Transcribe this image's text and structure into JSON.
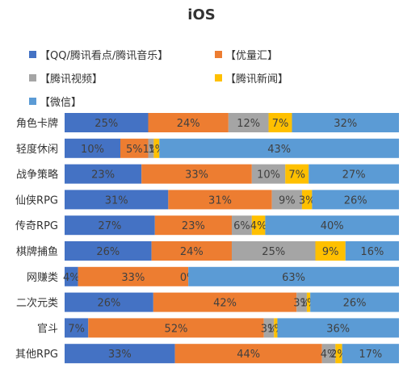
{
  "chart_data": {
    "type": "bar",
    "orientation": "horizontal",
    "stacked": true,
    "normalized": true,
    "title": "iOS",
    "categories": [
      "角色卡牌",
      "轻度休闲",
      "战争策略",
      "仙侠RPG",
      "传奇RPG",
      "棋牌捕鱼",
      "网赚类",
      "二次元类",
      "官斗",
      "其他RPG"
    ],
    "series": [
      {
        "name": "【QQ/腾讯看点/腾讯音乐】",
        "color": "#4472C4",
        "values": [
          25,
          10,
          23,
          31,
          27,
          26,
          4,
          26,
          7,
          33
        ],
        "labels": [
          "25%",
          "10%",
          "23%",
          "31%",
          "27%",
          "26%",
          "4%",
          "26%",
          "7%",
          "33%"
        ]
      },
      {
        "name": "【优量汇】",
        "color": "#ED7D31",
        "values": [
          24,
          5,
          33,
          31,
          23,
          24,
          33,
          42,
          52,
          44
        ],
        "labels": [
          "24%",
          "5%",
          "33%",
          "31%",
          "23%",
          "24%",
          "33%",
          "42%",
          "52%",
          "44%"
        ]
      },
      {
        "name": "【腾讯视频】",
        "color": "#A5A5A5",
        "values": [
          12,
          1,
          10,
          9,
          6,
          25,
          0,
          3,
          3,
          4
        ],
        "labels": [
          "12%",
          "1%",
          "10%",
          "9%",
          "6%",
          "25%",
          "0%",
          "3%",
          "3%",
          "4%"
        ]
      },
      {
        "name": "【腾讯新闻】",
        "color": "#FFC000",
        "values": [
          7,
          1,
          7,
          3,
          4,
          9,
          0,
          1,
          1,
          2
        ],
        "labels": [
          "7%",
          "1%",
          "7%",
          "3%",
          "4%",
          "9%",
          "",
          "1%",
          "1%",
          "2%"
        ]
      },
      {
        "name": "【微信】",
        "color": "#5B9BD5",
        "values": [
          32,
          43,
          27,
          26,
          40,
          16,
          63,
          26,
          36,
          17
        ],
        "labels": [
          "32%",
          "43%",
          "27%",
          "26%",
          "40%",
          "16%",
          "63%",
          "26%",
          "36%",
          "17%"
        ]
      }
    ],
    "xlim": [
      0,
      100
    ],
    "grid": false,
    "legend_position": "top"
  }
}
